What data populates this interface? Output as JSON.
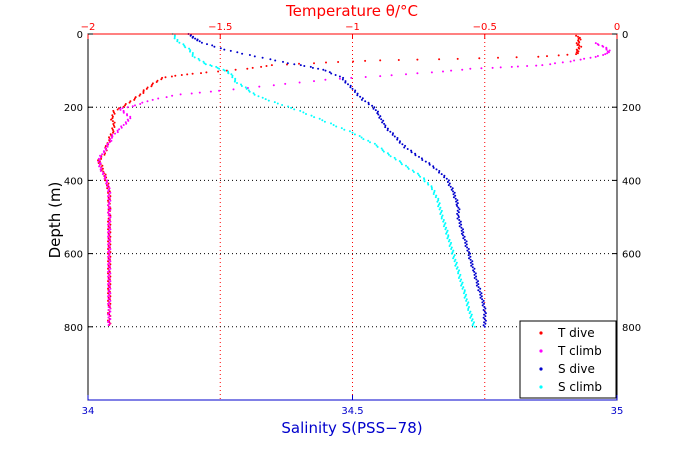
{
  "chart_data": {
    "type": "scatter",
    "title": "",
    "xlabel": "Salinity S(PSS−78)",
    "x2label": "Temperature θ/°C",
    "ylabel": "Depth (m)",
    "xlim": [
      34,
      35
    ],
    "x2lim": [
      -2,
      0
    ],
    "ylim": [
      1000,
      0
    ],
    "grid": true,
    "legend_position": "bottom-right",
    "x_ticks": [
      34,
      34.5,
      35
    ],
    "x_tick_labels": [
      "34",
      "34.5",
      "35"
    ],
    "x2_ticks": [
      -2,
      -1.5,
      -1,
      -0.5,
      0
    ],
    "x2_tick_labels": [
      "−2",
      "−1.5",
      "−1",
      "−0.5",
      "0"
    ],
    "y_ticks": [
      0,
      200,
      400,
      600,
      800
    ],
    "y_tick_labels": [
      "0",
      "200",
      "400",
      "600",
      "800"
    ],
    "series": [
      {
        "name": "T dive",
        "axis": "x2",
        "color": "#ff0000",
        "points": [
          [
            -0.15,
            5
          ],
          [
            -0.14,
            15
          ],
          [
            -0.15,
            25
          ],
          [
            -0.14,
            35
          ],
          [
            -0.15,
            45
          ],
          [
            -0.15,
            55
          ],
          [
            -0.3,
            62
          ],
          [
            -0.6,
            68
          ],
          [
            -0.9,
            72
          ],
          [
            -1.1,
            78
          ],
          [
            -1.3,
            85
          ],
          [
            -1.4,
            95
          ],
          [
            -1.55,
            105
          ],
          [
            -1.65,
            112
          ],
          [
            -1.72,
            120
          ],
          [
            -1.75,
            135
          ],
          [
            -1.78,
            150
          ],
          [
            -1.8,
            165
          ],
          [
            -1.83,
            180
          ],
          [
            -1.86,
            195
          ],
          [
            -1.9,
            210
          ],
          [
            -1.91,
            230
          ],
          [
            -1.9,
            250
          ],
          [
            -1.91,
            270
          ],
          [
            -1.92,
            290
          ],
          [
            -1.93,
            310
          ],
          [
            -1.94,
            330
          ],
          [
            -1.96,
            345
          ],
          [
            -1.95,
            360
          ],
          [
            -1.94,
            380
          ],
          [
            -1.93,
            400
          ],
          [
            -1.92,
            430
          ],
          [
            -1.92,
            460
          ],
          [
            -1.92,
            500
          ],
          [
            -1.92,
            550
          ],
          [
            -1.92,
            600
          ],
          [
            -1.92,
            650
          ],
          [
            -1.92,
            700
          ],
          [
            -1.92,
            750
          ],
          [
            -1.92,
            795
          ]
        ]
      },
      {
        "name": "T climb",
        "axis": "x2",
        "color": "#ff00ff",
        "points": [
          [
            -1.92,
            795
          ],
          [
            -1.92,
            750
          ],
          [
            -1.92,
            700
          ],
          [
            -1.92,
            650
          ],
          [
            -1.92,
            600
          ],
          [
            -1.92,
            550
          ],
          [
            -1.92,
            500
          ],
          [
            -1.92,
            460
          ],
          [
            -1.92,
            430
          ],
          [
            -1.93,
            400
          ],
          [
            -1.95,
            370
          ],
          [
            -1.96,
            345
          ],
          [
            -1.94,
            320
          ],
          [
            -1.92,
            300
          ],
          [
            -1.91,
            280
          ],
          [
            -1.88,
            260
          ],
          [
            -1.86,
            245
          ],
          [
            -1.84,
            230
          ],
          [
            -1.86,
            215
          ],
          [
            -1.88,
            205
          ],
          [
            -1.82,
            195
          ],
          [
            -1.76,
            180
          ],
          [
            -1.65,
            165
          ],
          [
            -1.5,
            155
          ],
          [
            -1.3,
            140
          ],
          [
            -1.1,
            125
          ],
          [
            -0.9,
            115
          ],
          [
            -0.7,
            105
          ],
          [
            -0.55,
            95
          ],
          [
            -0.4,
            90
          ],
          [
            -0.28,
            85
          ],
          [
            -0.18,
            75
          ],
          [
            -0.1,
            65
          ],
          [
            -0.04,
            55
          ],
          [
            -0.03,
            45
          ],
          [
            -0.05,
            35
          ],
          [
            -0.08,
            25
          ]
        ]
      },
      {
        "name": "S dive",
        "axis": "x",
        "color": "#0000cc",
        "points": [
          [
            34.19,
            0
          ],
          [
            34.2,
            10
          ],
          [
            34.21,
            20
          ],
          [
            34.24,
            35
          ],
          [
            34.28,
            50
          ],
          [
            34.33,
            65
          ],
          [
            34.38,
            80
          ],
          [
            34.42,
            90
          ],
          [
            34.45,
            100
          ],
          [
            34.48,
            120
          ],
          [
            34.5,
            150
          ],
          [
            34.52,
            180
          ],
          [
            34.54,
            200
          ],
          [
            34.55,
            220
          ],
          [
            34.56,
            250
          ],
          [
            34.58,
            280
          ],
          [
            34.6,
            310
          ],
          [
            34.63,
            340
          ],
          [
            34.66,
            370
          ],
          [
            34.68,
            400
          ],
          [
            34.69,
            430
          ],
          [
            34.7,
            470
          ],
          [
            34.7,
            500
          ],
          [
            34.71,
            550
          ],
          [
            34.72,
            600
          ],
          [
            34.73,
            650
          ],
          [
            34.74,
            700
          ],
          [
            34.75,
            750
          ],
          [
            34.75,
            800
          ]
        ]
      },
      {
        "name": "S climb",
        "axis": "x",
        "color": "#00ffff",
        "points": [
          [
            34.73,
            800
          ],
          [
            34.72,
            750
          ],
          [
            34.71,
            700
          ],
          [
            34.7,
            650
          ],
          [
            34.69,
            600
          ],
          [
            34.68,
            550
          ],
          [
            34.67,
            500
          ],
          [
            34.66,
            450
          ],
          [
            34.65,
            420
          ],
          [
            34.63,
            390
          ],
          [
            34.6,
            360
          ],
          [
            34.57,
            330
          ],
          [
            34.54,
            300
          ],
          [
            34.5,
            270
          ],
          [
            34.45,
            240
          ],
          [
            34.4,
            210
          ],
          [
            34.36,
            190
          ],
          [
            34.32,
            170
          ],
          [
            34.3,
            150
          ],
          [
            34.28,
            130
          ],
          [
            34.27,
            110
          ],
          [
            34.26,
            100
          ],
          [
            34.24,
            90
          ],
          [
            34.22,
            80
          ],
          [
            34.2,
            60
          ],
          [
            34.19,
            40
          ],
          [
            34.17,
            20
          ],
          [
            34.16,
            0
          ]
        ]
      }
    ]
  }
}
